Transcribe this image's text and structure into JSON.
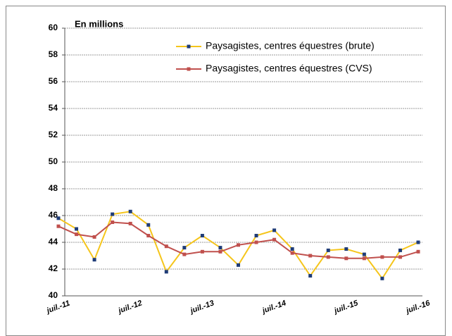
{
  "chart_data": {
    "type": "line",
    "annotation": "En millions",
    "categories": [
      "juil.-11",
      null,
      null,
      null,
      "juil.-12",
      null,
      null,
      null,
      "juil.-13",
      null,
      null,
      null,
      "juil.-14",
      null,
      null,
      null,
      "juil.-15",
      null,
      null,
      null,
      "juil.-16"
    ],
    "series": [
      {
        "name": "Paysagistes, centres équestres (brute)",
        "color": "#f5c51b",
        "marker_color": "#1f3c78",
        "values": [
          45.8,
          45.0,
          42.7,
          46.1,
          46.3,
          45.3,
          41.8,
          43.6,
          44.5,
          43.6,
          42.3,
          44.5,
          44.9,
          43.5,
          41.5,
          43.4,
          43.5,
          43.1,
          41.3,
          43.4,
          44.0
        ]
      },
      {
        "name": "Paysagistes, centres équestres (CVS)",
        "color": "#c0504d",
        "marker_color": "#c0504d",
        "values": [
          45.2,
          44.6,
          44.4,
          45.5,
          45.4,
          44.5,
          43.7,
          43.1,
          43.3,
          43.3,
          43.8,
          44.0,
          44.2,
          43.2,
          43.0,
          42.9,
          42.8,
          42.8,
          42.9,
          42.9,
          43.3
        ]
      }
    ],
    "ylim": [
      40,
      60
    ],
    "yticks": [
      40,
      42,
      44,
      46,
      48,
      50,
      52,
      54,
      56,
      58,
      60
    ],
    "grid": true
  }
}
